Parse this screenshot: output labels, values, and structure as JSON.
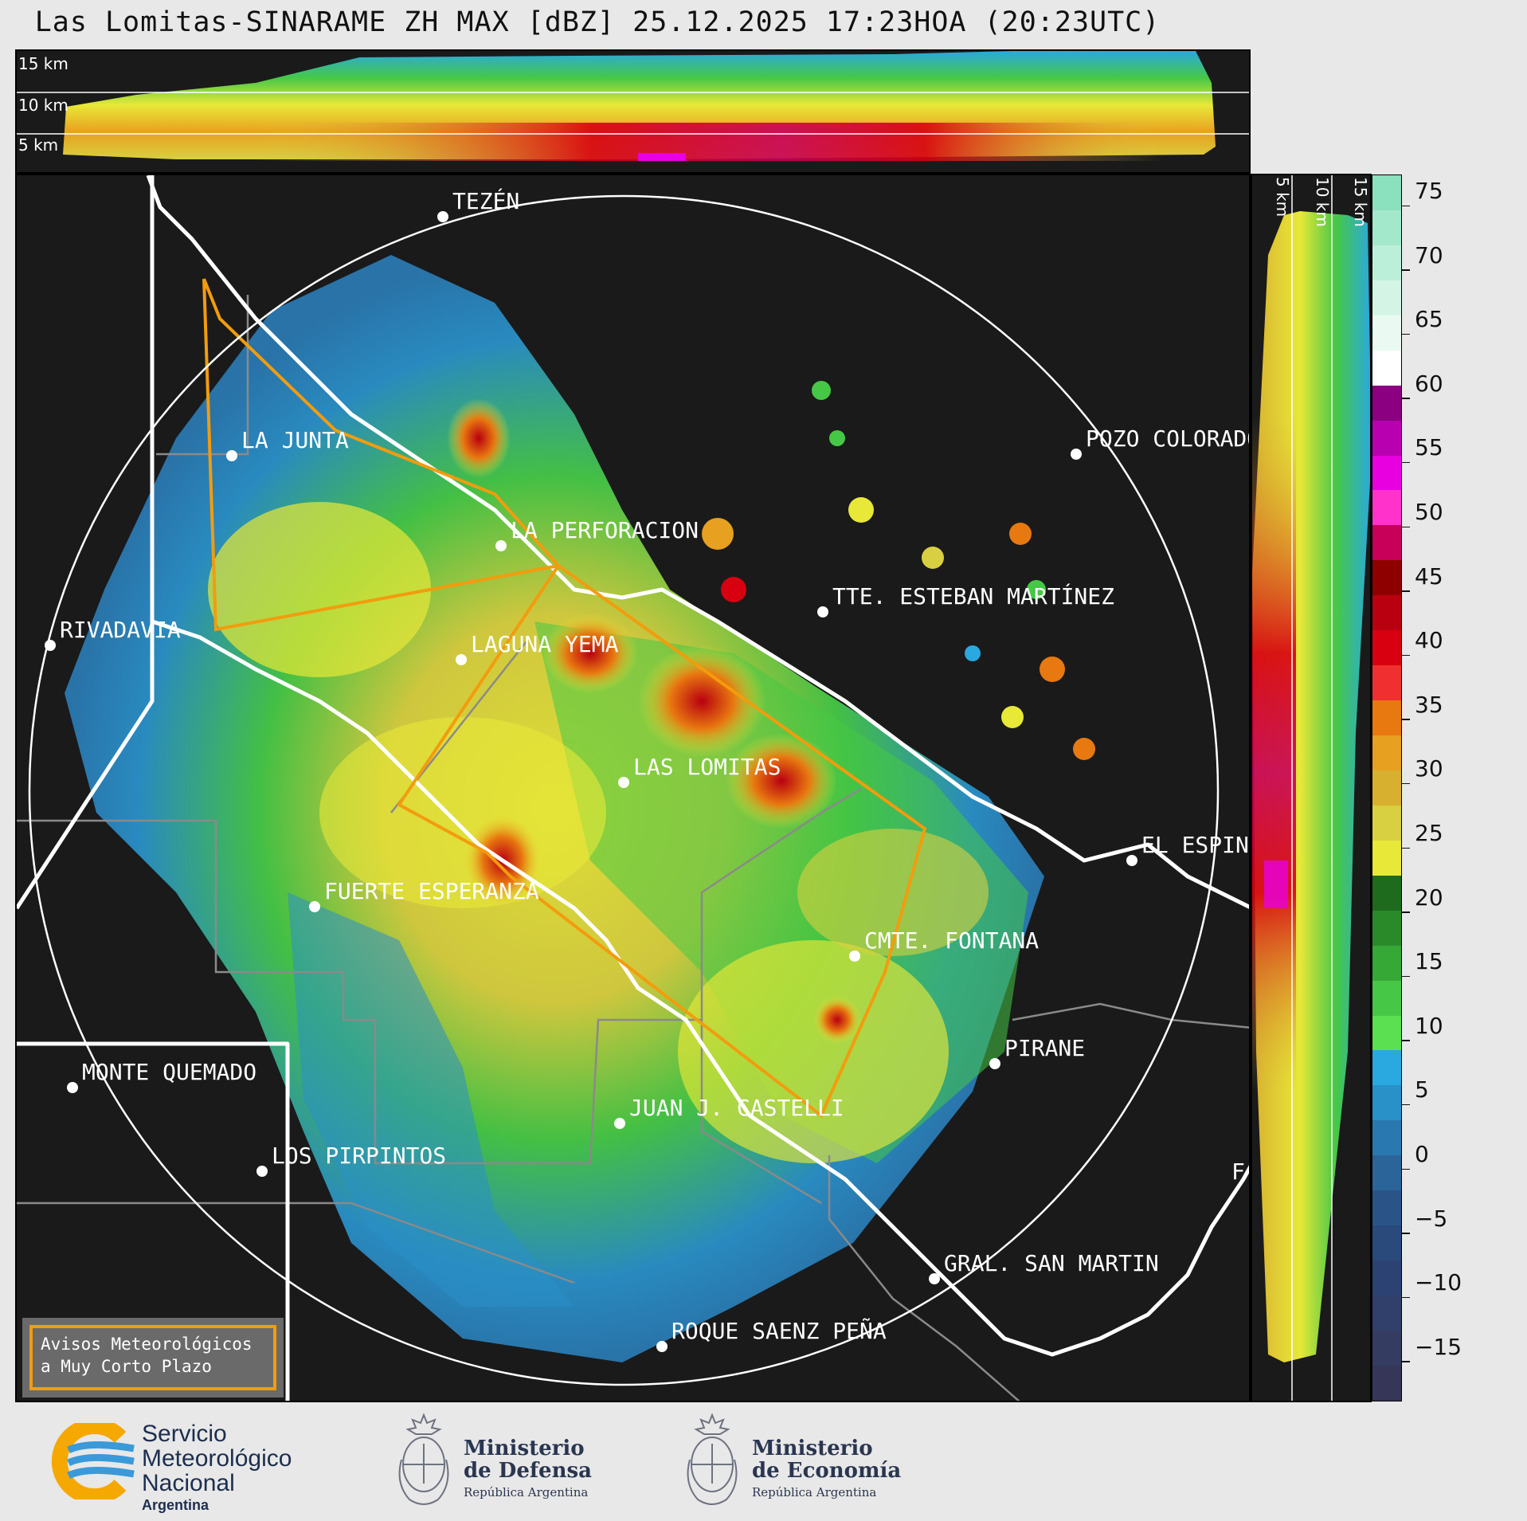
{
  "title": "Las Lomitas-SINARAME ZH MAX [dBZ] 25.12.2025 17:23HOA (20:23UTC)",
  "top_panel": {
    "height_labels": [
      "15 km",
      "10 km",
      "5 km"
    ]
  },
  "side_panel": {
    "height_labels": [
      "5 km",
      "10 km",
      "15 km"
    ]
  },
  "map": {
    "radar_site": "LAS LOMITAS",
    "cities": [
      {
        "name": "TEZÉN"
      },
      {
        "name": "LA JUNTA"
      },
      {
        "name": "POZO COLORADO"
      },
      {
        "name": "LA PERFORACION"
      },
      {
        "name": "TTE. ESTEBAN MARTÍNEZ"
      },
      {
        "name": "RIVADAVIA"
      },
      {
        "name": "LAGUNA YEMA"
      },
      {
        "name": "LAS LOMITAS"
      },
      {
        "name": "EL ESPINILLO"
      },
      {
        "name": "FUERTE ESPERANZA"
      },
      {
        "name": "CMTE. FONTANA"
      },
      {
        "name": "PIRANE"
      },
      {
        "name": "MONTE QUEMADO"
      },
      {
        "name": "JUAN J. CASTELLI"
      },
      {
        "name": "LOS PIRPINTOS"
      },
      {
        "name": "GRAL. SAN MARTIN"
      },
      {
        "name": "ROQUE SAENZ PEÑA"
      }
    ],
    "edge_fragment": "F"
  },
  "colorbar": {
    "unit": "dBZ",
    "ticks": [
      "75",
      "70",
      "65",
      "60",
      "55",
      "50",
      "45",
      "40",
      "35",
      "30",
      "25",
      "20",
      "15",
      "10",
      "5",
      "0",
      "−5",
      "−10",
      "−15"
    ],
    "colors": [
      "#8be0bd",
      "#a4e8cc",
      "#bcefd9",
      "#d4f5e6",
      "#eafaf2",
      "#ffffff",
      "#8a0080",
      "#b800b0",
      "#e800e0",
      "#ff33cc",
      "#c8005a",
      "#8e0000",
      "#b80010",
      "#d80010",
      "#f03030",
      "#e87810",
      "#e8a020",
      "#d8b030",
      "#d8d040",
      "#e8e838",
      "#1e6b1e",
      "#2a8a2a",
      "#36a836",
      "#46c846",
      "#5ae050",
      "#2aa8e0",
      "#2a90c8",
      "#2a78b0",
      "#2a6498",
      "#2a5488",
      "#2a4a7c",
      "#2c4272",
      "#30406a",
      "#343c62",
      "#363658"
    ]
  },
  "notice": {
    "line1": "Avisos Meteorológicos",
    "line2": "a Muy Corto Plazo"
  },
  "logos": {
    "smn": {
      "line1": "Servicio",
      "line2": "Meteorológico",
      "line3": "Nacional",
      "line4": "Argentina"
    },
    "defensa": {
      "line1": "Ministerio",
      "line2": "de Defensa",
      "line3": "República Argentina"
    },
    "economia": {
      "line1": "Ministerio",
      "line2": "de Economía",
      "line3": "República Argentina"
    }
  }
}
